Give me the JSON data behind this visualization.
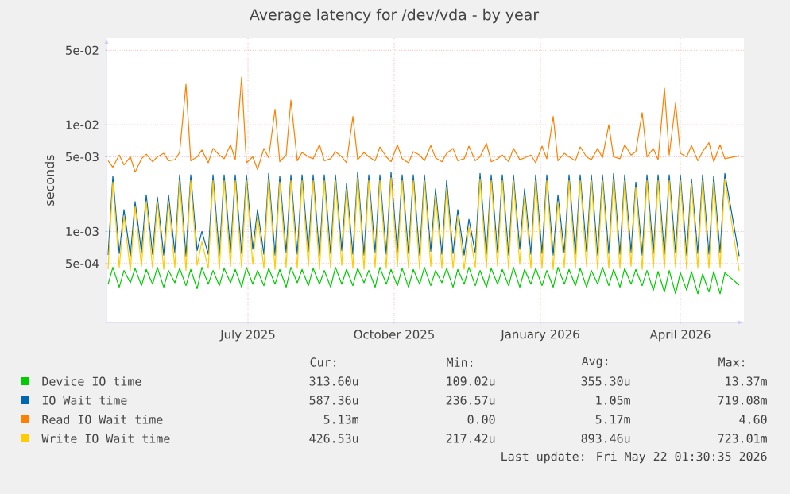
{
  "chart_data": {
    "type": "line",
    "title": "Average latency for /dev/vda - by year",
    "ylabel": "seconds",
    "log": "y",
    "grid": true,
    "legend": "bottom",
    "xlim": [
      "2025-04-19",
      "2026-05-25"
    ],
    "xticks": [
      {
        "value": "2025-07-17",
        "label": "July 2025"
      },
      {
        "value": "2025-10-17",
        "label": "October 2025"
      },
      {
        "value": "2026-01-17",
        "label": "January 2026"
      },
      {
        "value": "2026-04-15",
        "label": "April 2026"
      }
    ],
    "ylim": [
      0.00014,
      0.065
    ],
    "yticks": [
      {
        "value": 0.0005,
        "label": "5e-04"
      },
      {
        "value": 0.001,
        "label": "1e-03"
      },
      {
        "value": 0.005,
        "label": "5e-03"
      },
      {
        "value": 0.01,
        "label": "1e-02"
      },
      {
        "value": 0.05,
        "label": "5e-02"
      }
    ],
    "x": [
      "2025-04-20",
      "2025-04-23",
      "2025-04-27",
      "2025-04-30",
      "2025-05-04",
      "2025-05-07",
      "2025-05-11",
      "2025-05-14",
      "2025-05-18",
      "2025-05-21",
      "2025-05-25",
      "2025-05-28",
      "2025-06-01",
      "2025-06-04",
      "2025-06-08",
      "2025-06-11",
      "2025-06-15",
      "2025-06-18",
      "2025-06-22",
      "2025-06-25",
      "2025-06-29",
      "2025-07-02",
      "2025-07-06",
      "2025-07-09",
      "2025-07-13",
      "2025-07-16",
      "2025-07-20",
      "2025-07-23",
      "2025-07-27",
      "2025-07-30",
      "2025-08-03",
      "2025-08-06",
      "2025-08-10",
      "2025-08-13",
      "2025-08-17",
      "2025-08-20",
      "2025-08-24",
      "2025-08-27",
      "2025-08-31",
      "2025-09-03",
      "2025-09-07",
      "2025-09-10",
      "2025-09-14",
      "2025-09-17",
      "2025-09-21",
      "2025-09-24",
      "2025-09-28",
      "2025-10-01",
      "2025-10-05",
      "2025-10-08",
      "2025-10-12",
      "2025-10-15",
      "2025-10-19",
      "2025-10-22",
      "2025-10-26",
      "2025-10-29",
      "2025-11-02",
      "2025-11-05",
      "2025-11-09",
      "2025-11-12",
      "2025-11-16",
      "2025-11-19",
      "2025-11-23",
      "2025-11-26",
      "2025-11-30",
      "2025-12-03",
      "2025-12-07",
      "2025-12-10",
      "2025-12-14",
      "2025-12-17",
      "2025-12-21",
      "2025-12-24",
      "2025-12-28",
      "2025-12-31",
      "2026-01-04",
      "2026-01-07",
      "2026-01-11",
      "2026-01-14",
      "2026-01-18",
      "2026-01-21",
      "2026-01-25",
      "2026-01-28",
      "2026-02-01",
      "2026-02-04",
      "2026-02-08",
      "2026-02-11",
      "2026-02-15",
      "2026-02-18",
      "2026-02-22",
      "2026-02-25",
      "2026-03-01",
      "2026-03-04",
      "2026-03-08",
      "2026-03-11",
      "2026-03-15",
      "2026-03-18",
      "2026-03-22",
      "2026-03-25",
      "2026-03-29",
      "2026-04-01",
      "2026-04-05",
      "2026-04-08",
      "2026-04-12",
      "2026-04-15",
      "2026-04-19",
      "2026-04-22",
      "2026-04-26",
      "2026-04-29",
      "2026-05-03",
      "2026-05-06",
      "2026-05-10",
      "2026-05-13",
      "2026-05-22"
    ],
    "series": [
      {
        "name": "Device IO time",
        "color": "#00cc00",
        "values": [
          0.00032,
          0.00046,
          0.0003,
          0.00043,
          0.00033,
          0.00045,
          0.00031,
          0.00044,
          0.00032,
          0.00046,
          0.0003,
          0.00043,
          0.00033,
          0.00045,
          0.00031,
          0.00044,
          0.00029,
          0.00046,
          0.00032,
          0.00043,
          0.00031,
          0.00045,
          0.00033,
          0.00044,
          0.0003,
          0.00046,
          0.00032,
          0.00043,
          0.00031,
          0.00045,
          0.00032,
          0.00044,
          0.0003,
          0.00046,
          0.00033,
          0.00044,
          0.00031,
          0.00045,
          0.00032,
          0.00043,
          0.0003,
          0.00046,
          0.00032,
          0.00044,
          0.00031,
          0.00045,
          0.00033,
          0.00043,
          0.0003,
          0.00046,
          0.00032,
          0.00044,
          0.00031,
          0.00045,
          0.0003,
          0.00044,
          0.00032,
          0.00046,
          0.00031,
          0.00043,
          0.00033,
          0.00045,
          0.0003,
          0.00044,
          0.00032,
          0.00046,
          0.00031,
          0.00043,
          0.0003,
          0.00045,
          0.00032,
          0.00044,
          0.00031,
          0.00046,
          0.0003,
          0.00044,
          0.00032,
          0.00045,
          0.00031,
          0.00043,
          0.0003,
          0.00046,
          0.00032,
          0.00044,
          0.00031,
          0.00045,
          0.0003,
          0.00043,
          0.00032,
          0.00046,
          0.00031,
          0.00044,
          0.0003,
          0.00045,
          0.00032,
          0.00044,
          0.00031,
          0.00043,
          0.00028,
          0.00042,
          0.00027,
          0.00043,
          0.00026,
          0.00041,
          0.00028,
          0.00042,
          0.00026,
          0.0004,
          0.00027,
          0.00042,
          0.00026,
          0.00041,
          0.0003136
        ]
      },
      {
        "name": "IO Wait time",
        "color": "#0066b3",
        "values": [
          0.0006,
          0.0033,
          0.00062,
          0.0016,
          0.00059,
          0.0019,
          0.00064,
          0.0022,
          0.00061,
          0.0021,
          0.0006,
          0.0022,
          0.00063,
          0.0034,
          0.00059,
          0.0034,
          0.00066,
          0.001,
          0.00061,
          0.0034,
          0.0006,
          0.0034,
          0.00064,
          0.0034,
          0.00062,
          0.0034,
          0.00068,
          0.0016,
          0.00061,
          0.0035,
          0.0006,
          0.0033,
          0.00063,
          0.0034,
          0.00061,
          0.0034,
          0.00065,
          0.0034,
          0.0006,
          0.0034,
          0.00062,
          0.0034,
          0.00066,
          0.0028,
          0.00061,
          0.0036,
          0.0006,
          0.0034,
          0.00063,
          0.0034,
          0.00061,
          0.0036,
          0.00064,
          0.0034,
          0.00062,
          0.0034,
          0.0006,
          0.0034,
          0.00065,
          0.0025,
          0.00061,
          0.003,
          0.00062,
          0.0016,
          0.0006,
          0.0013,
          0.00063,
          0.0035,
          0.00061,
          0.0034,
          0.00064,
          0.0034,
          0.0006,
          0.0034,
          0.00068,
          0.0025,
          0.00061,
          0.0034,
          0.00062,
          0.0034,
          0.0006,
          0.0022,
          0.00063,
          0.0034,
          0.00061,
          0.0034,
          0.00065,
          0.0034,
          0.0006,
          0.0034,
          0.00062,
          0.0035,
          0.00061,
          0.0034,
          0.00064,
          0.0029,
          0.0006,
          0.0034,
          0.00062,
          0.0034,
          0.00061,
          0.0034,
          0.00063,
          0.0034,
          0.0006,
          0.0031,
          0.00062,
          0.0034,
          0.00061,
          0.0033,
          0.00063,
          0.0035,
          0.00058736
        ]
      },
      {
        "name": "Read IO Wait time",
        "color": "#ff8000",
        "values": [
          0.0046,
          0.004,
          0.0052,
          0.0042,
          0.005,
          0.0036,
          0.0048,
          0.0053,
          0.0045,
          0.005,
          0.0054,
          0.0046,
          0.0047,
          0.0055,
          0.024,
          0.0046,
          0.005,
          0.0058,
          0.0044,
          0.006,
          0.0052,
          0.0048,
          0.0065,
          0.0047,
          0.028,
          0.0044,
          0.005,
          0.0038,
          0.006,
          0.0049,
          0.014,
          0.0045,
          0.0052,
          0.017,
          0.0046,
          0.0055,
          0.005,
          0.0048,
          0.0065,
          0.0046,
          0.0048,
          0.0056,
          0.005,
          0.0044,
          0.012,
          0.0047,
          0.0055,
          0.005,
          0.0046,
          0.0062,
          0.005,
          0.0045,
          0.0065,
          0.0048,
          0.0044,
          0.0056,
          0.0052,
          0.0046,
          0.0064,
          0.0049,
          0.0045,
          0.0054,
          0.006,
          0.0046,
          0.0048,
          0.0063,
          0.0046,
          0.005,
          0.0067,
          0.0045,
          0.0048,
          0.0052,
          0.0045,
          0.006,
          0.0047,
          0.0049,
          0.0052,
          0.0044,
          0.0063,
          0.0048,
          0.012,
          0.0046,
          0.0054,
          0.005,
          0.0046,
          0.0062,
          0.005,
          0.0047,
          0.006,
          0.0049,
          0.01,
          0.005,
          0.0048,
          0.0065,
          0.0052,
          0.0056,
          0.013,
          0.005,
          0.006,
          0.0047,
          0.022,
          0.0052,
          0.016,
          0.0054,
          0.005,
          0.0064,
          0.0046,
          0.0056,
          0.0068,
          0.0045,
          0.0065,
          0.0048,
          0.00513
        ]
      },
      {
        "name": "Write IO Wait time",
        "color": "#ffcc00",
        "values": [
          0.00044,
          0.0029,
          0.00046,
          0.0014,
          0.00043,
          0.0017,
          0.00047,
          0.0019,
          0.00045,
          0.0019,
          0.00044,
          0.0019,
          0.00046,
          0.003,
          0.00043,
          0.003,
          0.00048,
          0.0008,
          0.00045,
          0.003,
          0.00044,
          0.003,
          0.00047,
          0.003,
          0.00045,
          0.003,
          0.00049,
          0.0014,
          0.00045,
          0.0031,
          0.00044,
          0.0029,
          0.00046,
          0.003,
          0.00045,
          0.003,
          0.00047,
          0.003,
          0.00044,
          0.003,
          0.00045,
          0.003,
          0.00048,
          0.0025,
          0.00045,
          0.0032,
          0.00044,
          0.003,
          0.00046,
          0.003,
          0.00045,
          0.0032,
          0.00047,
          0.003,
          0.00045,
          0.003,
          0.00044,
          0.003,
          0.00047,
          0.0022,
          0.00045,
          0.0026,
          0.00045,
          0.0014,
          0.00044,
          0.0011,
          0.00046,
          0.0031,
          0.00045,
          0.003,
          0.00047,
          0.003,
          0.00044,
          0.003,
          0.00049,
          0.0022,
          0.00045,
          0.003,
          0.00045,
          0.003,
          0.00044,
          0.0019,
          0.00046,
          0.003,
          0.00045,
          0.003,
          0.00047,
          0.003,
          0.00044,
          0.003,
          0.00045,
          0.0031,
          0.00045,
          0.003,
          0.00047,
          0.0026,
          0.00044,
          0.003,
          0.00045,
          0.003,
          0.00045,
          0.003,
          0.00046,
          0.003,
          0.00044,
          0.0028,
          0.00045,
          0.003,
          0.00045,
          0.0029,
          0.00046,
          0.0031,
          0.00042653
        ]
      }
    ],
    "annotations": [
      "Cur:",
      "Min:",
      "Avg:",
      "Max:",
      "313.60u",
      "109.02u",
      "355.30u",
      "13.37m",
      "587.36u",
      "236.57u",
      "1.05m",
      "719.08m",
      "5.13m",
      "0.00",
      "5.17m",
      "4.60",
      "426.53u",
      "217.42u",
      "893.46u",
      "723.01m",
      "Last update: Fri May 22 01:30:35 2026"
    ]
  }
}
